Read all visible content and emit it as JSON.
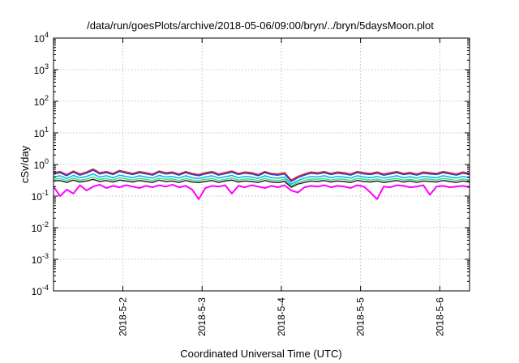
{
  "chart_data": {
    "type": "line",
    "title": "/data/run/goesPlots/archive/2018-05-06/09:00/bryn/../bryn/5daysMoon.plot",
    "xlabel": "Coordinated Universal Time (UTC)",
    "ylabel": "cSv/day",
    "y_scale": "log",
    "ylim": [
      0.0001,
      10000
    ],
    "y_ticks": [
      {
        "value": 10000,
        "base": "10",
        "exp": "4"
      },
      {
        "value": 1000,
        "base": "10",
        "exp": "3"
      },
      {
        "value": 100,
        "base": "10",
        "exp": "2"
      },
      {
        "value": 10,
        "base": "10",
        "exp": "1"
      },
      {
        "value": 1,
        "base": "10",
        "exp": "0"
      },
      {
        "value": 0.1,
        "base": "10",
        "exp": "-1"
      },
      {
        "value": 0.01,
        "base": "10",
        "exp": "-2"
      },
      {
        "value": 0.001,
        "base": "10",
        "exp": "-3"
      },
      {
        "value": 0.0001,
        "base": "10",
        "exp": "-4"
      }
    ],
    "xlim": [
      "2018-05-01T03:00",
      "2018-05-06T09:00"
    ],
    "x_ticks": [
      {
        "label": "2018-5-2",
        "value": "2018-05-02"
      },
      {
        "label": "2018-5-3",
        "value": "2018-05-03"
      },
      {
        "label": "2018-5-4",
        "value": "2018-05-04"
      },
      {
        "label": "2018-5-5",
        "value": "2018-05-05"
      },
      {
        "label": "2018-5-6",
        "value": "2018-05-06"
      }
    ],
    "grid": true,
    "x": [
      "2018-05-01T03:00",
      "2018-05-01T05:00",
      "2018-05-01T07:00",
      "2018-05-01T09:00",
      "2018-05-01T11:00",
      "2018-05-01T13:00",
      "2018-05-01T15:00",
      "2018-05-01T17:00",
      "2018-05-01T19:00",
      "2018-05-01T21:00",
      "2018-05-01T23:00",
      "2018-05-02T01:00",
      "2018-05-02T03:00",
      "2018-05-02T05:00",
      "2018-05-02T07:00",
      "2018-05-02T09:00",
      "2018-05-02T11:00",
      "2018-05-02T13:00",
      "2018-05-02T15:00",
      "2018-05-02T17:00",
      "2018-05-02T19:00",
      "2018-05-02T21:00",
      "2018-05-02T23:00",
      "2018-05-03T01:00",
      "2018-05-03T03:00",
      "2018-05-03T05:00",
      "2018-05-03T07:00",
      "2018-05-03T09:00",
      "2018-05-03T11:00",
      "2018-05-03T13:00",
      "2018-05-03T15:00",
      "2018-05-03T17:00",
      "2018-05-03T19:00",
      "2018-05-03T21:00",
      "2018-05-03T23:00",
      "2018-05-04T01:00",
      "2018-05-04T03:00",
      "2018-05-04T05:00",
      "2018-05-04T07:00",
      "2018-05-04T09:00",
      "2018-05-04T11:00",
      "2018-05-04T13:00",
      "2018-05-04T15:00",
      "2018-05-04T17:00",
      "2018-05-04T19:00",
      "2018-05-04T21:00",
      "2018-05-04T23:00",
      "2018-05-05T01:00",
      "2018-05-05T03:00",
      "2018-05-05T05:00",
      "2018-05-05T07:00",
      "2018-05-05T09:00",
      "2018-05-05T11:00",
      "2018-05-05T13:00",
      "2018-05-05T15:00",
      "2018-05-05T17:00",
      "2018-05-05T19:00",
      "2018-05-05T21:00",
      "2018-05-05T23:00",
      "2018-05-06T01:00",
      "2018-05-06T03:00",
      "2018-05-06T05:00",
      "2018-05-06T07:00",
      "2018-05-06T09:00"
    ],
    "series": [
      {
        "color": "#e41a1c",
        "values": [
          0.55,
          0.6,
          0.48,
          0.62,
          0.5,
          0.58,
          0.72,
          0.55,
          0.6,
          0.52,
          0.65,
          0.58,
          0.52,
          0.6,
          0.55,
          0.5,
          0.62,
          0.55,
          0.58,
          0.5,
          0.6,
          0.52,
          0.48,
          0.55,
          0.6,
          0.5,
          0.56,
          0.62,
          0.52,
          0.58,
          0.55,
          0.48,
          0.6,
          0.52,
          0.5,
          0.55,
          0.32,
          0.42,
          0.5,
          0.58,
          0.55,
          0.6,
          0.52,
          0.58,
          0.55,
          0.5,
          0.6,
          0.55,
          0.52,
          0.58,
          0.5,
          0.55,
          0.6,
          0.52,
          0.56,
          0.5,
          0.58,
          0.55,
          0.52,
          0.6,
          0.55,
          0.5,
          0.58,
          0.52
        ]
      },
      {
        "color": "#1f3fd6",
        "values": [
          0.5,
          0.55,
          0.44,
          0.57,
          0.46,
          0.53,
          0.66,
          0.5,
          0.55,
          0.48,
          0.6,
          0.53,
          0.48,
          0.55,
          0.5,
          0.46,
          0.57,
          0.5,
          0.53,
          0.46,
          0.55,
          0.48,
          0.44,
          0.5,
          0.55,
          0.46,
          0.51,
          0.57,
          0.48,
          0.53,
          0.5,
          0.44,
          0.55,
          0.48,
          0.46,
          0.5,
          0.29,
          0.38,
          0.46,
          0.53,
          0.5,
          0.55,
          0.48,
          0.53,
          0.5,
          0.46,
          0.55,
          0.5,
          0.48,
          0.53,
          0.46,
          0.5,
          0.55,
          0.48,
          0.51,
          0.46,
          0.53,
          0.5,
          0.48,
          0.55,
          0.5,
          0.46,
          0.53,
          0.48
        ]
      },
      {
        "color": "#00b7e6",
        "values": [
          0.4,
          0.44,
          0.36,
          0.45,
          0.38,
          0.42,
          0.5,
          0.4,
          0.44,
          0.38,
          0.46,
          0.42,
          0.38,
          0.44,
          0.4,
          0.37,
          0.45,
          0.4,
          0.42,
          0.37,
          0.44,
          0.38,
          0.36,
          0.4,
          0.44,
          0.37,
          0.41,
          0.45,
          0.38,
          0.42,
          0.4,
          0.36,
          0.44,
          0.38,
          0.37,
          0.4,
          0.24,
          0.31,
          0.37,
          0.42,
          0.4,
          0.44,
          0.38,
          0.42,
          0.4,
          0.37,
          0.44,
          0.4,
          0.38,
          0.42,
          0.37,
          0.4,
          0.44,
          0.38,
          0.41,
          0.37,
          0.42,
          0.4,
          0.38,
          0.44,
          0.4,
          0.37,
          0.42,
          0.38
        ]
      },
      {
        "color": "#3ddc84",
        "values": [
          0.34,
          0.36,
          0.31,
          0.37,
          0.32,
          0.35,
          0.4,
          0.34,
          0.36,
          0.32,
          0.38,
          0.35,
          0.32,
          0.36,
          0.34,
          0.31,
          0.37,
          0.34,
          0.35,
          0.31,
          0.36,
          0.32,
          0.31,
          0.34,
          0.36,
          0.31,
          0.34,
          0.37,
          0.32,
          0.35,
          0.34,
          0.31,
          0.36,
          0.32,
          0.31,
          0.34,
          0.21,
          0.27,
          0.31,
          0.35,
          0.34,
          0.36,
          0.32,
          0.35,
          0.34,
          0.31,
          0.36,
          0.34,
          0.32,
          0.35,
          0.31,
          0.34,
          0.36,
          0.32,
          0.34,
          0.31,
          0.35,
          0.34,
          0.32,
          0.36,
          0.34,
          0.31,
          0.35,
          0.32
        ]
      },
      {
        "color": "#222222",
        "values": [
          0.3,
          0.31,
          0.27,
          0.32,
          0.28,
          0.3,
          0.34,
          0.29,
          0.31,
          0.28,
          0.32,
          0.3,
          0.28,
          0.31,
          0.29,
          0.27,
          0.32,
          0.29,
          0.3,
          0.27,
          0.31,
          0.28,
          0.27,
          0.29,
          0.31,
          0.27,
          0.3,
          0.32,
          0.28,
          0.3,
          0.29,
          0.27,
          0.31,
          0.28,
          0.27,
          0.29,
          0.19,
          0.24,
          0.27,
          0.3,
          0.29,
          0.31,
          0.28,
          0.3,
          0.29,
          0.27,
          0.31,
          0.29,
          0.28,
          0.3,
          0.27,
          0.29,
          0.31,
          0.28,
          0.3,
          0.27,
          0.3,
          0.29,
          0.28,
          0.31,
          0.29,
          0.27,
          0.3,
          0.28
        ]
      },
      {
        "color": "#ff00ff",
        "values": [
          0.2,
          0.1,
          0.16,
          0.12,
          0.22,
          0.15,
          0.2,
          0.23,
          0.18,
          0.21,
          0.19,
          0.22,
          0.2,
          0.18,
          0.21,
          0.19,
          0.22,
          0.2,
          0.23,
          0.19,
          0.21,
          0.16,
          0.08,
          0.18,
          0.21,
          0.2,
          0.22,
          0.12,
          0.21,
          0.19,
          0.22,
          0.2,
          0.18,
          0.21,
          0.19,
          0.22,
          0.15,
          0.13,
          0.19,
          0.21,
          0.2,
          0.22,
          0.19,
          0.21,
          0.2,
          0.18,
          0.22,
          0.2,
          0.13,
          0.08,
          0.2,
          0.19,
          0.22,
          0.21,
          0.19,
          0.2,
          0.22,
          0.11,
          0.2,
          0.21,
          0.19,
          0.2,
          0.21,
          0.19
        ]
      }
    ]
  }
}
